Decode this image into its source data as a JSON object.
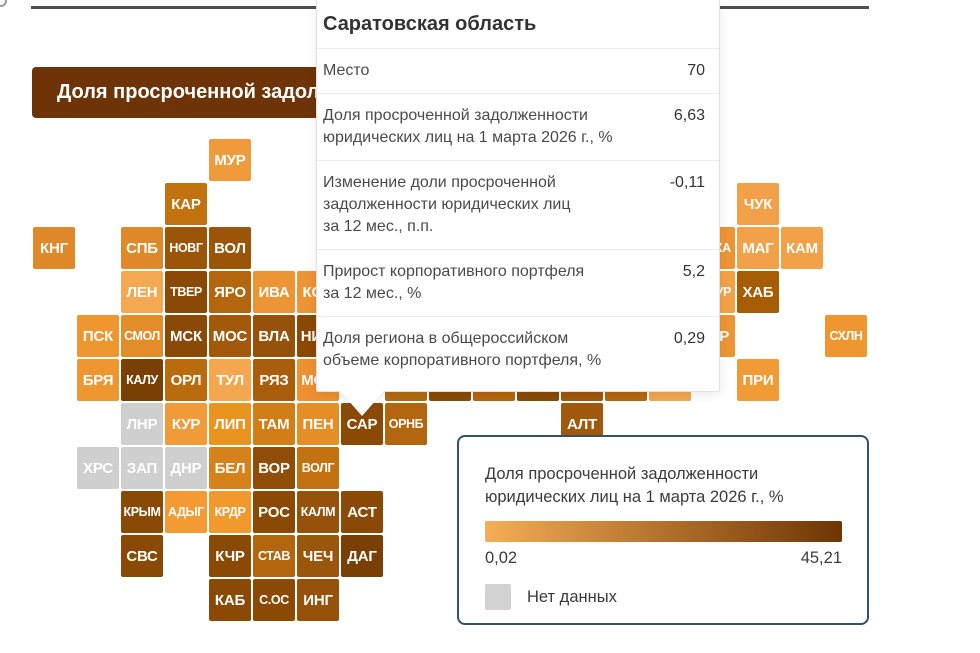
{
  "page": {
    "bg": "#ffffff",
    "top_line_color": "#4e4e4e"
  },
  "banner": {
    "text": "Доля просроченной задол",
    "bg": "#6e3407",
    "text_color": "#ffffff"
  },
  "tooltip": {
    "title": "Саратовская область",
    "metrics": [
      {
        "label": "Место",
        "value": "70"
      },
      {
        "label": "Доля просроченной задолженности\nюридических лиц на 1 марта 2026 г., %",
        "value": "6,63"
      },
      {
        "label": "Изменение доли просроченной\nзадолженности юридических лиц\nза 12 мес., п.п.",
        "value": "-0,11"
      },
      {
        "label": "Прирост корпоративного портфеля\nза 12 мес., %",
        "value": "5,2"
      },
      {
        "label": "Доля региона в общероссийском\nобъеме корпоративного портфеля, %",
        "value": "0,29"
      }
    ]
  },
  "legend": {
    "title": "Доля просроченной задолженности\nюридических лиц на 1 марта 2026 г., %",
    "min_label": "0,02",
    "max_label": "45,21",
    "gradient_start": "#f5ae56",
    "gradient_end": "#6e3503",
    "no_data_label": "Нет данных",
    "no_data_color": "#d2d2d2",
    "border_color": "#35506b"
  },
  "map": {
    "tiles": [
      {
        "label": "МУР",
        "row": 0,
        "col": 4,
        "color": "#ef9b3c"
      },
      {
        "label": "КАР",
        "row": 1,
        "col": 3,
        "color": "#c1720f"
      },
      {
        "label": "ЧУК",
        "row": 1,
        "col": 16,
        "color": "#f2a148"
      },
      {
        "label": "КНГ",
        "row": 2,
        "col": 0,
        "color": "#e0892a"
      },
      {
        "label": "СПБ",
        "row": 2,
        "col": 2,
        "color": "#e0892a"
      },
      {
        "label": "НОВГ",
        "row": 2,
        "col": 3,
        "color": "#9a5509"
      },
      {
        "label": "ВОЛ",
        "row": 2,
        "col": 4,
        "color": "#9a5509"
      },
      {
        "label": "САХА",
        "row": 2,
        "col": 15,
        "color": "#ed9434"
      },
      {
        "label": "МАГ",
        "row": 2,
        "col": 16,
        "color": "#f2a148"
      },
      {
        "label": "КАМ",
        "row": 2,
        "col": 17,
        "color": "#f2a148"
      },
      {
        "label": "ЛЕН",
        "row": 3,
        "col": 2,
        "color": "#f3a851"
      },
      {
        "label": "ТВЕР",
        "row": 3,
        "col": 3,
        "color": "#8a4a06"
      },
      {
        "label": "ЯРО",
        "row": 3,
        "col": 4,
        "color": "#b4660e"
      },
      {
        "label": "ИВА",
        "row": 3,
        "col": 5,
        "color": "#ed9434"
      },
      {
        "label": "КОС",
        "row": 3,
        "col": 6,
        "color": "#ed9434"
      },
      {
        "label": "АМУР",
        "row": 3,
        "col": 15,
        "color": "#f2a148"
      },
      {
        "label": "ХАБ",
        "row": 3,
        "col": 16,
        "color": "#a55c02"
      },
      {
        "label": "ПСК",
        "row": 4,
        "col": 1,
        "color": "#ee9630"
      },
      {
        "label": "СМОЛ",
        "row": 4,
        "col": 2,
        "color": "#e28d2a"
      },
      {
        "label": "МСК",
        "row": 4,
        "col": 3,
        "color": "#8a4a06"
      },
      {
        "label": "МОС",
        "row": 4,
        "col": 4,
        "color": "#a25a0a"
      },
      {
        "label": "ВЛА",
        "row": 4,
        "col": 5,
        "color": "#96520a"
      },
      {
        "label": "НИЖ",
        "row": 4,
        "col": 6,
        "color": "#8a4a06"
      },
      {
        "label": "ЕВР",
        "row": 4,
        "col": 15,
        "color": "#ed9434"
      },
      {
        "label": "СХЛН",
        "row": 4,
        "col": 18,
        "color": "#ee9630"
      },
      {
        "label": "БРЯ",
        "row": 5,
        "col": 1,
        "color": "#ee9630"
      },
      {
        "label": "КАЛУ",
        "row": 5,
        "col": 2,
        "color": "#7a3f05"
      },
      {
        "label": "ОРЛ",
        "row": 5,
        "col": 3,
        "color": "#ba6b0e"
      },
      {
        "label": "ТУЛ",
        "row": 5,
        "col": 4,
        "color": "#f4a74e"
      },
      {
        "label": "РЯЗ",
        "row": 5,
        "col": 5,
        "color": "#aa5e0c"
      },
      {
        "label": "МОР",
        "row": 5,
        "col": 6,
        "color": "#ed9030"
      },
      {
        "label": "",
        "row": 5,
        "col": 8,
        "color": "#b26a10"
      },
      {
        "label": "",
        "row": 5,
        "col": 9,
        "color": "#8a4a06"
      },
      {
        "label": "",
        "row": 5,
        "col": 10,
        "color": "#b4660e"
      },
      {
        "label": "",
        "row": 5,
        "col": 11,
        "color": "#8a4a06"
      },
      {
        "label": "",
        "row": 5,
        "col": 12,
        "color": "#a0580a"
      },
      {
        "label": "",
        "row": 5,
        "col": 13,
        "color": "#b4660e"
      },
      {
        "label": "",
        "row": 5,
        "col": 14,
        "color": "#f2a850"
      },
      {
        "label": "ПРИ",
        "row": 5,
        "col": 16,
        "color": "#f09b35"
      },
      {
        "label": "ЛНР",
        "row": 6,
        "col": 2,
        "color": "#cfcfcf"
      },
      {
        "label": "КУР",
        "row": 6,
        "col": 3,
        "color": "#f09a38"
      },
      {
        "label": "ЛИП",
        "row": 6,
        "col": 4,
        "color": "#e8941f"
      },
      {
        "label": "ТАМ",
        "row": 6,
        "col": 5,
        "color": "#d07e15"
      },
      {
        "label": "ПЕН",
        "row": 6,
        "col": 6,
        "color": "#e48e25"
      },
      {
        "label": "САР",
        "row": 6,
        "col": 7,
        "color": "#8a4a06"
      },
      {
        "label": "ОРНБ",
        "row": 6,
        "col": 8,
        "color": "#b4660e"
      },
      {
        "label": "АЛТ",
        "row": 6,
        "col": 12,
        "color": "#a0580a"
      },
      {
        "label": "ХРС",
        "row": 7,
        "col": 1,
        "color": "#cfcfcf"
      },
      {
        "label": "ЗАП",
        "row": 7,
        "col": 2,
        "color": "#cfcfcf"
      },
      {
        "label": "ДНР",
        "row": 7,
        "col": 3,
        "color": "#cfcfcf"
      },
      {
        "label": "БЕЛ",
        "row": 7,
        "col": 4,
        "color": "#d5821a"
      },
      {
        "label": "ВОР",
        "row": 7,
        "col": 5,
        "color": "#8f4d08"
      },
      {
        "label": "ВОЛГ",
        "row": 7,
        "col": 6,
        "color": "#c3720f"
      },
      {
        "label": "КРЫМ",
        "row": 8,
        "col": 2,
        "color": "#8a4a06"
      },
      {
        "label": "АДЫГ",
        "row": 8,
        "col": 3,
        "color": "#f49a32"
      },
      {
        "label": "КРДР",
        "row": 8,
        "col": 4,
        "color": "#f2992e"
      },
      {
        "label": "РОС",
        "row": 8,
        "col": 5,
        "color": "#8a4a06"
      },
      {
        "label": "КАЛМ",
        "row": 8,
        "col": 6,
        "color": "#96520a"
      },
      {
        "label": "АСТ",
        "row": 8,
        "col": 7,
        "color": "#8a4a06"
      },
      {
        "label": "СВС",
        "row": 9,
        "col": 2,
        "color": "#8a4a06"
      },
      {
        "label": "КЧР",
        "row": 9,
        "col": 4,
        "color": "#8a4a06"
      },
      {
        "label": "СТАВ",
        "row": 9,
        "col": 5,
        "color": "#b4660e"
      },
      {
        "label": "ЧЕЧ",
        "row": 9,
        "col": 6,
        "color": "#9a560b"
      },
      {
        "label": "ДАГ",
        "row": 9,
        "col": 7,
        "color": "#7a3f05"
      },
      {
        "label": "КАБ",
        "row": 10,
        "col": 4,
        "color": "#8a4a06"
      },
      {
        "label": "С.ОС",
        "row": 10,
        "col": 5,
        "color": "#8a4a06"
      },
      {
        "label": "ИНГ",
        "row": 10,
        "col": 6,
        "color": "#96520a"
      }
    ]
  },
  "chart_data": {
    "type": "heatmap",
    "subtype": "tile-cartogram",
    "title": "Доля просроченной задол",
    "metric": "Доля просроченной задолженности юридических лиц на 1 марта 2026 г., %",
    "scale": {
      "min": 0.02,
      "max": 45.21,
      "min_label": "0,02",
      "max_label": "45,21",
      "gradient": [
        "#f5ae56",
        "#6e3503"
      ],
      "no_data_label": "Нет данных",
      "no_data_color": "#d2d2d2"
    },
    "highlighted_region": {
      "name": "Саратовская область",
      "tile": "САР",
      "rank": 70,
      "overdue_share_pct": 6.63,
      "change_12m_pp": -0.11,
      "portfolio_growth_12m_pct": 5.2,
      "share_of_russia_portfolio_pct": 0.29
    },
    "no_data_regions": [
      "ЛНР",
      "ХРС",
      "ЗАП",
      "ДНР"
    ],
    "legend_position": "bottom-right"
  }
}
